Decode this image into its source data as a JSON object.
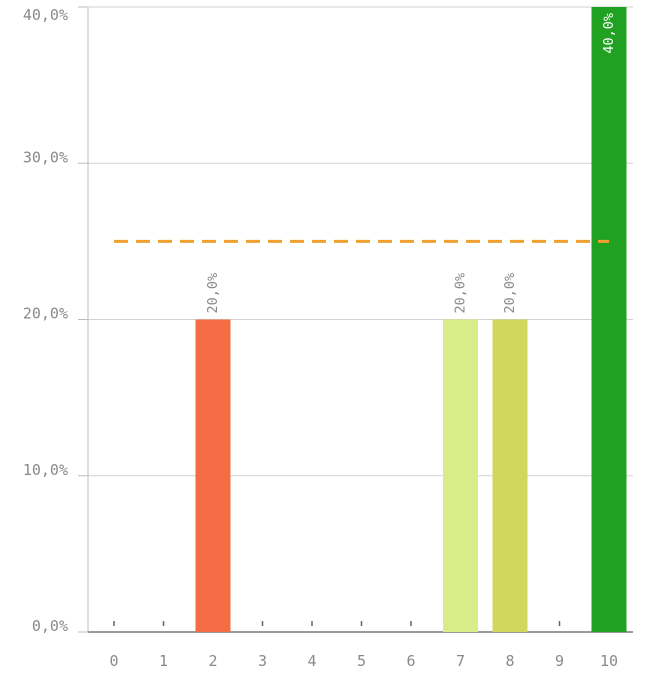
{
  "chart_data": {
    "type": "bar",
    "categories": [
      "0",
      "1",
      "2",
      "3",
      "4",
      "5",
      "6",
      "7",
      "8",
      "9",
      "10"
    ],
    "values": [
      0,
      0,
      20,
      0,
      0,
      0,
      0,
      20,
      20,
      0,
      40
    ],
    "data_labels": [
      "",
      "",
      "20,0%",
      "",
      "",
      "",
      "",
      "20,0%",
      "20,0%",
      "",
      "40,0%"
    ],
    "bar_colors": [
      "#f36c43",
      "#f36c43",
      "#f36c43",
      "#f36c43",
      "#f36c43",
      "#f36c43",
      "#f36c43",
      "#d8ec87",
      "#cfd75d",
      "#20a020",
      "#21a121"
    ],
    "ylim": [
      0,
      40
    ],
    "yticks": [
      0,
      10,
      20,
      30,
      40
    ],
    "ytick_labels": [
      "0,0%",
      "10,0%",
      "20,0%",
      "30,0%",
      "40,0%"
    ],
    "reference_line": {
      "value": 25,
      "style": "dashed",
      "color": "#f0a030"
    },
    "grid": true,
    "title": "",
    "xlabel": "",
    "ylabel": ""
  }
}
